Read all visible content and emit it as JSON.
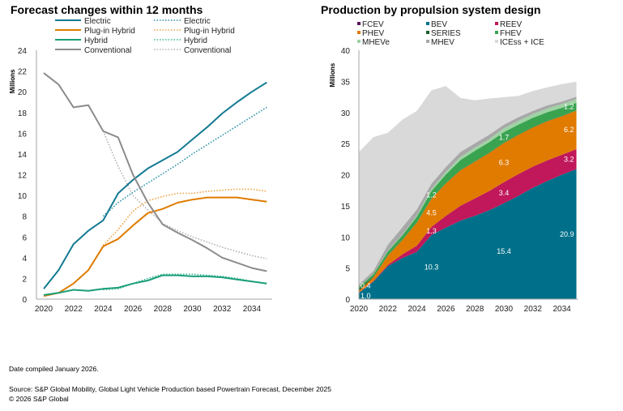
{
  "footer": {
    "date_compiled": "Date compiled January 2026.",
    "source": "Source: S&P Global Mobility, Global Light Vehicle Production based Powertrain Forecast, December 2025",
    "copyright": "© 2026 S&P Global"
  },
  "chart_data": [
    {
      "type": "line",
      "title": "Forecast changes within 12 months",
      "xlabel": "",
      "ylabel": "Millions",
      "xlim": [
        2020,
        2035
      ],
      "ylim": [
        0,
        24
      ],
      "x_ticks": [
        "2020",
        "2022",
        "2024",
        "2026",
        "2028",
        "2030",
        "2032",
        "2034"
      ],
      "y_ticks": [
        "0",
        "2",
        "4",
        "6",
        "8",
        "10",
        "12",
        "14",
        "16",
        "18",
        "20",
        "22",
        "24"
      ],
      "grid": false,
      "legend_position": "top",
      "x": [
        2020,
        2021,
        2022,
        2023,
        2024,
        2025,
        2026,
        2027,
        2028,
        2029,
        2030,
        2031,
        2032,
        2033,
        2034,
        2035
      ],
      "series": [
        {
          "name": "Electric",
          "style": "solid",
          "color": "#137a93",
          "values": [
            1.0,
            2.8,
            5.3,
            6.6,
            7.6,
            10.2,
            11.5,
            12.6,
            13.4,
            14.2,
            15.4,
            16.6,
            17.9,
            19.0,
            20.0,
            20.9
          ]
        },
        {
          "name": "Plug-in Hybrid",
          "style": "solid",
          "color": "#e07b00",
          "values": [
            0.3,
            0.6,
            1.5,
            2.8,
            5.1,
            5.8,
            7.1,
            8.3,
            8.7,
            9.3,
            9.6,
            9.8,
            9.8,
            9.8,
            9.6,
            9.4
          ]
        },
        {
          "name": "Hybrid",
          "style": "solid",
          "color": "#1a9e79",
          "values": [
            0.4,
            0.6,
            0.9,
            0.8,
            1.0,
            1.1,
            1.5,
            1.8,
            2.3,
            2.3,
            2.2,
            2.2,
            2.1,
            1.9,
            1.7,
            1.5
          ]
        },
        {
          "name": "Conventional",
          "style": "solid",
          "color": "#8c8c8c",
          "values": [
            21.8,
            20.7,
            18.5,
            18.7,
            16.2,
            15.6,
            12.0,
            9.3,
            7.2,
            6.4,
            5.7,
            4.9,
            4.0,
            3.5,
            3.0,
            2.7
          ]
        },
        {
          "name": "Electric",
          "style": "dotted",
          "color": "#2a8fa8",
          "values": [
            null,
            null,
            null,
            null,
            8.0,
            9.3,
            10.3,
            11.2,
            12.1,
            13.0,
            14.0,
            14.9,
            15.8,
            16.7,
            17.6,
            18.5
          ]
        },
        {
          "name": "Plug-in Hybrid",
          "style": "dotted",
          "color": "#f0a040",
          "values": [
            null,
            null,
            null,
            null,
            5.2,
            6.7,
            8.5,
            9.5,
            9.9,
            10.2,
            10.2,
            10.4,
            10.5,
            10.6,
            10.6,
            10.4
          ]
        },
        {
          "name": "Hybrid",
          "style": "dotted",
          "color": "#3bb894",
          "values": [
            null,
            null,
            null,
            null,
            0.9,
            1.0,
            1.5,
            2.0,
            2.4,
            2.4,
            2.4,
            2.3,
            2.2,
            2.0,
            1.7,
            1.5
          ]
        },
        {
          "name": "Conventional",
          "style": "dotted",
          "color": "#b0b0b0",
          "values": [
            null,
            null,
            null,
            null,
            16.2,
            12.8,
            10.0,
            8.6,
            7.3,
            6.6,
            6.0,
            5.5,
            5.0,
            4.6,
            4.2,
            3.9
          ]
        }
      ]
    },
    {
      "type": "area",
      "stacked": true,
      "title": "Production by propulsion system design",
      "xlabel": "",
      "ylabel": "Millions",
      "xlim": [
        2020,
        2035
      ],
      "ylim": [
        0,
        40
      ],
      "x_ticks": [
        "2020",
        "2022",
        "2024",
        "2026",
        "2028",
        "2030",
        "2032",
        "2034"
      ],
      "y_ticks": [
        "0",
        "5",
        "10",
        "15",
        "20",
        "25",
        "30",
        "35",
        "40"
      ],
      "grid": false,
      "legend_position": "top",
      "x": [
        2020,
        2021,
        2022,
        2023,
        2024,
        2025,
        2026,
        2027,
        2028,
        2029,
        2030,
        2031,
        2032,
        2033,
        2034,
        2035
      ],
      "series": [
        {
          "name": "BEV",
          "color": "#00708a",
          "values": [
            1.0,
            2.8,
            5.3,
            6.6,
            7.6,
            10.3,
            11.5,
            12.6,
            13.4,
            14.3,
            15.4,
            16.6,
            17.9,
            19.0,
            20.0,
            20.9
          ]
        },
        {
          "name": "REEV",
          "color": "#c0185a",
          "values": [
            0.05,
            0.1,
            0.2,
            0.6,
            1.0,
            1.3,
            1.9,
            2.4,
            2.8,
            3.1,
            3.4,
            3.5,
            3.4,
            3.3,
            3.2,
            3.2
          ]
        },
        {
          "name": "PHEV",
          "color": "#e07b00",
          "values": [
            0.3,
            0.6,
            1.5,
            2.3,
            3.7,
            4.5,
            5.2,
            5.7,
            5.9,
            6.1,
            6.3,
            6.3,
            6.3,
            6.3,
            6.2,
            6.2
          ]
        },
        {
          "name": "FCEV",
          "color": "#5b1a5e",
          "values": [
            0.0,
            0.0,
            0.0,
            0.0,
            0.0,
            0.0,
            0.0,
            0.0,
            0.0,
            0.0,
            0.0,
            0.0,
            0.0,
            0.0,
            0.0,
            0.0
          ]
        },
        {
          "name": "SERIES",
          "color": "#1a5e2a",
          "values": [
            0.3,
            0.1,
            0.05,
            0.05,
            0.05,
            0.05,
            0.05,
            0.05,
            0.05,
            0.05,
            0.05,
            0.05,
            0.05,
            0.05,
            0.05,
            0.05
          ]
        },
        {
          "name": "FHEV",
          "color": "#3aa350",
          "values": [
            0.3,
            0.4,
            0.6,
            0.7,
            0.9,
            1.2,
            1.4,
            1.6,
            1.7,
            1.7,
            1.7,
            1.6,
            1.5,
            1.4,
            1.3,
            1.2
          ]
        },
        {
          "name": "MHEVe",
          "color": "#9fd3a4",
          "values": [
            0.0,
            0.05,
            0.1,
            0.1,
            0.2,
            0.3,
            0.4,
            0.5,
            0.5,
            0.5,
            0.6,
            0.6,
            0.6,
            0.6,
            0.6,
            0.6
          ]
        },
        {
          "name": "MHEV",
          "color": "#a8a8a8",
          "values": [
            0.4,
            0.5,
            1.0,
            1.2,
            1.0,
            0.9,
            0.8,
            0.8,
            0.7,
            0.7,
            0.6,
            0.6,
            0.5,
            0.5,
            0.4,
            0.4
          ]
        },
        {
          "name": "ICEss + ICE",
          "color": "#d9d9d9",
          "values": [
            21.3,
            21.5,
            18.0,
            17.3,
            15.8,
            15.0,
            13.0,
            8.7,
            6.9,
            5.8,
            4.4,
            3.4,
            3.2,
            2.9,
            2.8,
            2.4
          ]
        }
      ],
      "legend_order": [
        "FCEV",
        "BEV",
        "REEV",
        "PHEV",
        "SERIES",
        "FHEV",
        "MHEVe",
        "MHEV",
        "ICEss + ICE"
      ],
      "data_labels": [
        {
          "series": "BEV",
          "x": 2020,
          "text": "1.0"
        },
        {
          "series": "BEV",
          "x": 2025,
          "text": "10.3"
        },
        {
          "series": "BEV",
          "x": 2030,
          "text": "15.4"
        },
        {
          "series": "BEV",
          "x": 2035,
          "text": "20.9"
        },
        {
          "series": "REEV",
          "x": 2025,
          "text": "1.3"
        },
        {
          "series": "REEV",
          "x": 2030,
          "text": "3.4"
        },
        {
          "series": "REEV",
          "x": 2035,
          "text": "3.2"
        },
        {
          "series": "PHEV",
          "x": 2025,
          "text": "4.5"
        },
        {
          "series": "PHEV",
          "x": 2030,
          "text": "6.3"
        },
        {
          "series": "PHEV",
          "x": 2035,
          "text": "6.2"
        },
        {
          "series": "FHEV",
          "x": 2025,
          "text": "1.2"
        },
        {
          "series": "FHEV",
          "x": 2030,
          "text": "1.7"
        },
        {
          "series": "FHEV",
          "x": 2035,
          "text": "1.2"
        },
        {
          "series": "MHEV",
          "x": 2020,
          "text": "0.4"
        }
      ]
    }
  ]
}
